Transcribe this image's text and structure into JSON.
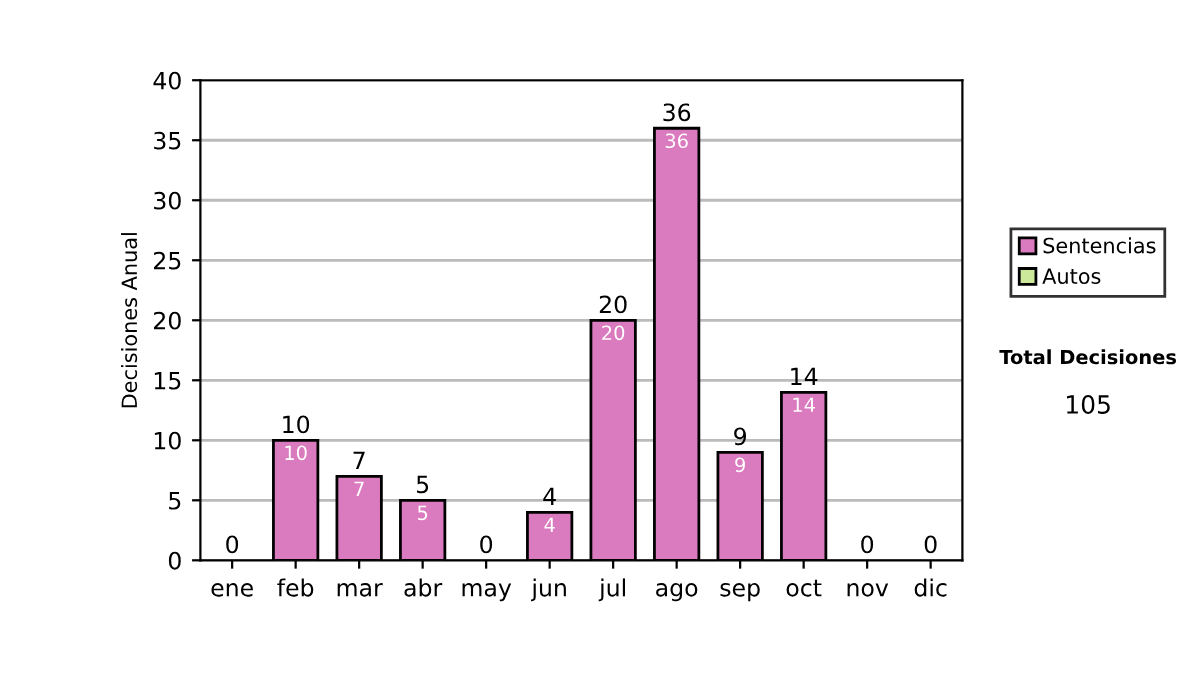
{
  "chart_data": {
    "type": "bar",
    "stacked": true,
    "ylabel": "Decisiones Anual",
    "categories": [
      "ene",
      "feb",
      "mar",
      "abr",
      "may",
      "jun",
      "jul",
      "ago",
      "sep",
      "oct",
      "nov",
      "dic"
    ],
    "series": [
      {
        "name": "Sentencias",
        "color": "#db7bbf",
        "values": [
          0,
          10,
          7,
          5,
          0,
          4,
          20,
          36,
          9,
          14,
          0,
          0
        ],
        "value_labels": [
          null,
          "10",
          "7",
          "5",
          null,
          "4",
          "20",
          "36",
          "9",
          "14",
          null,
          null
        ]
      },
      {
        "name": "Autos",
        "color": "#cce89a",
        "values": [
          0,
          0,
          0,
          0,
          0,
          0,
          0,
          0,
          0,
          0,
          0,
          0
        ]
      }
    ],
    "totals": [
      "0",
      "10",
      "7",
      "5",
      "0",
      "4",
      "20",
      "36",
      "9",
      "14",
      "0",
      "0"
    ],
    "ylim": [
      0,
      40
    ],
    "yticks": [
      0,
      5,
      10,
      15,
      20,
      25,
      30,
      35,
      40
    ],
    "grid": "y",
    "legend": "right",
    "annotations": [
      "Total Decisiones",
      "105"
    ]
  }
}
